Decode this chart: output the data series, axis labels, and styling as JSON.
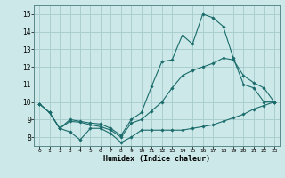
{
  "title": "",
  "xlabel": "Humidex (Indice chaleur)",
  "background_color": "#cce8e8",
  "grid_color": "#aacfcf",
  "line_color": "#1a6b6b",
  "xlim": [
    -0.5,
    23.5
  ],
  "ylim": [
    7.5,
    15.5
  ],
  "xticks": [
    0,
    1,
    2,
    3,
    4,
    5,
    6,
    7,
    8,
    9,
    10,
    11,
    12,
    13,
    14,
    15,
    16,
    17,
    18,
    19,
    20,
    21,
    22,
    23
  ],
  "yticks": [
    8,
    9,
    10,
    11,
    12,
    13,
    14,
    15
  ],
  "line1_x": [
    0,
    1,
    2,
    3,
    4,
    5,
    6,
    7,
    8,
    9,
    10,
    11,
    12,
    13,
    14,
    15,
    16,
    17,
    18,
    19,
    20,
    21,
    22,
    23
  ],
  "line1_y": [
    9.9,
    9.4,
    8.5,
    8.3,
    7.85,
    8.5,
    8.5,
    8.2,
    7.7,
    8.0,
    8.4,
    8.4,
    8.4,
    8.4,
    8.4,
    8.5,
    8.6,
    8.7,
    8.9,
    9.1,
    9.3,
    9.6,
    9.8,
    10.0
  ],
  "line2_x": [
    0,
    1,
    2,
    3,
    4,
    5,
    6,
    7,
    8,
    9,
    10,
    11,
    12,
    13,
    14,
    15,
    16,
    17,
    18,
    19,
    20,
    21,
    22,
    23
  ],
  "line2_y": [
    9.9,
    9.4,
    8.5,
    9.0,
    8.9,
    8.8,
    8.75,
    8.5,
    8.1,
    9.0,
    9.4,
    10.9,
    12.3,
    12.4,
    13.8,
    13.3,
    15.0,
    14.8,
    14.3,
    12.5,
    11.0,
    10.8,
    10.0,
    10.0
  ],
  "line3_x": [
    0,
    1,
    2,
    3,
    4,
    5,
    6,
    7,
    8,
    9,
    10,
    11,
    12,
    13,
    14,
    15,
    16,
    17,
    18,
    19,
    20,
    21,
    22,
    23
  ],
  "line3_y": [
    9.9,
    9.4,
    8.5,
    8.9,
    8.85,
    8.7,
    8.6,
    8.4,
    8.0,
    8.8,
    9.0,
    9.5,
    10.0,
    10.8,
    11.5,
    11.8,
    12.0,
    12.2,
    12.5,
    12.4,
    11.5,
    11.1,
    10.8,
    10.0
  ]
}
